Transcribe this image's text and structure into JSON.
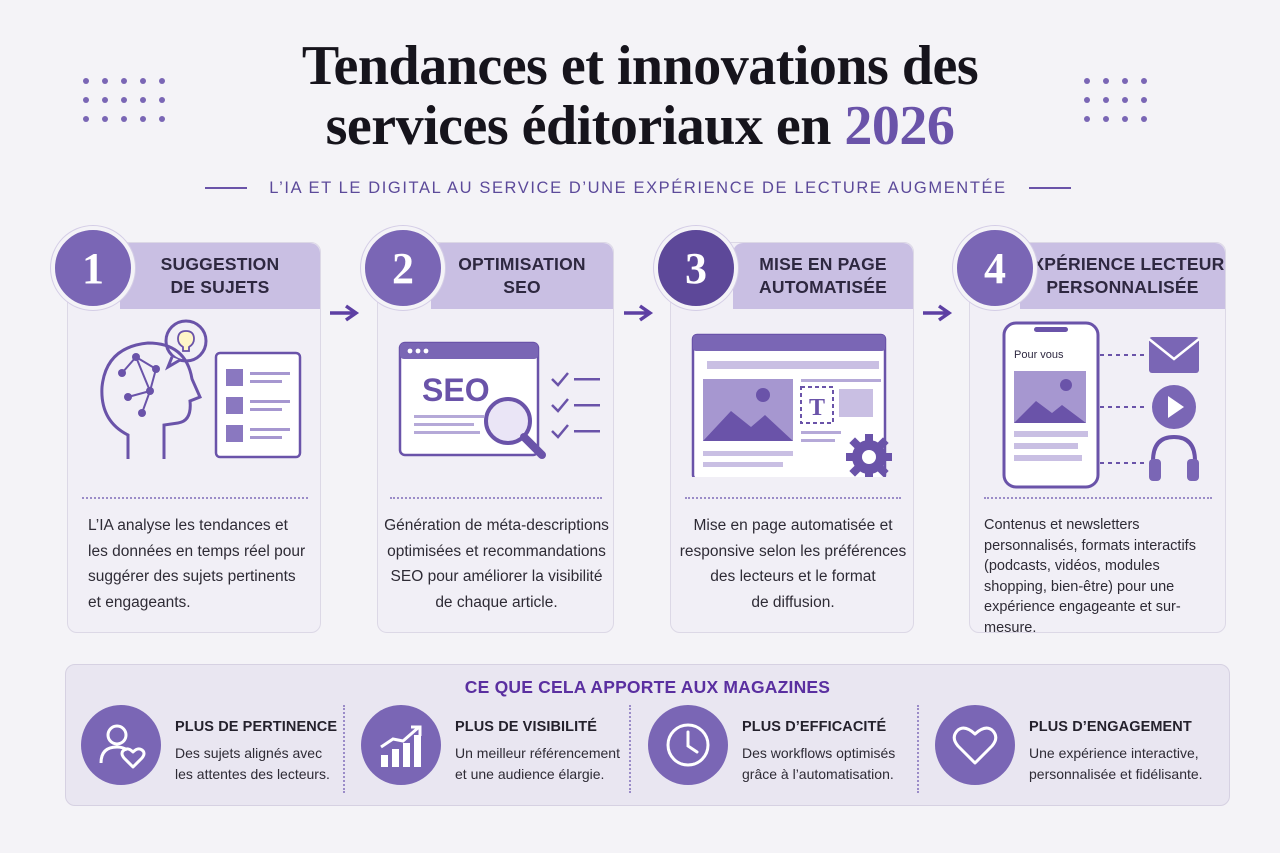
{
  "title": {
    "line1": "Tendances et innovations des",
    "line2": "services éditoriaux en",
    "accent": "2026"
  },
  "subtitle": "L’IA ET LE DIGITAL AU SERVICE D’UNE EXPÉRIENCE DE LECTURE AUGMENTÉE",
  "steps": [
    {
      "number": "1",
      "title_line1": "SUGGESTION",
      "title_line2": "DE SUJETS",
      "description": [
        "L’IA analyse les tendances et",
        "les données en temps réel pour",
        "suggérer des sujets pertinents",
        "et engageants."
      ]
    },
    {
      "number": "2",
      "title_line1": "OPTIMISATION",
      "title_line2": "SEO",
      "illustration_text": "SEO",
      "description": [
        "Génération de méta-descriptions",
        "optimisées et recommandations",
        "SEO pour améliorer la visibilité",
        "de chaque article."
      ]
    },
    {
      "number": "3",
      "title_line1": "MISE EN PAGE",
      "title_line2": "AUTOMATISÉE",
      "illustration_text": "T",
      "description": [
        "Mise en page automatisée et",
        "responsive selon les préférences",
        "des lecteurs et le format",
        "de diffusion."
      ]
    },
    {
      "number": "4",
      "title_line1": "EXPÉRIENCE LECTEUR",
      "title_line2": "PERSONNALISÉE",
      "illustration_text": "Pour vous",
      "description": [
        "Contenus et newsletters",
        "personnalisés, formats interactifs",
        "(podcasts, vidéos, modules",
        "shopping, bien-être) pour une",
        "expérience engageante et sur-mesure."
      ]
    }
  ],
  "benefits": {
    "title": "CE QUE CELA APPORTE AUX MAGAZINES",
    "items": [
      {
        "icon": "user-heart-icon",
        "heading": "PLUS DE PERTINENCE",
        "line1": "Des sujets alignés avec",
        "line2": "les attentes des lecteurs."
      },
      {
        "icon": "growth-chart-icon",
        "heading": "PLUS DE VISIBILITÉ",
        "line1": "Un meilleur référencement",
        "line2": "et une audience élargie."
      },
      {
        "icon": "clock-icon",
        "heading": "PLUS D’EFFICACITÉ",
        "line1": "Des workflows optimisés",
        "line2": "grâce à l’automatisation."
      },
      {
        "icon": "heart-icon",
        "heading": "PLUS D’ENGAGEMENT",
        "line1": "Une expérience interactive,",
        "line2": "personnalisée et fidélisante."
      }
    ]
  },
  "colors": {
    "primary": "#7a66b5",
    "primary_dark": "#5d4899",
    "header_bg": "#c9bfe3",
    "accent_text": "#5a2fa0",
    "page_bg": "#f4f3f7"
  }
}
